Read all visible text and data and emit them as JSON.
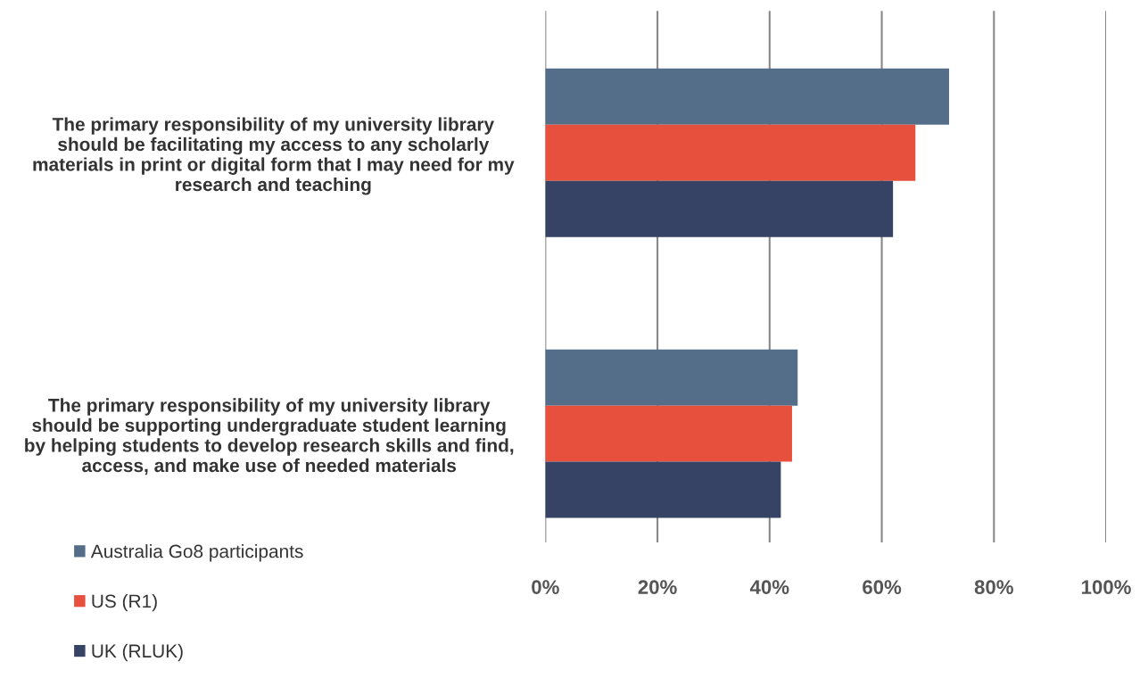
{
  "chart_data": {
    "type": "bar",
    "orientation": "horizontal",
    "categories": [
      "The primary responsibility of my university library\nshould be facilitating my access to any scholarly\nmaterials in print or digital form that I may need for my\nresearch and teaching",
      "The primary responsibility of my university library\nshould be supporting undergraduate student learning\nby helping students to develop research skills and find,\naccess, and make use of needed materials"
    ],
    "series": [
      {
        "name": "Australia Go8 participants",
        "color": "#546e8a",
        "values": [
          72,
          45
        ]
      },
      {
        "name": "US (R1)",
        "color": "#e8503e",
        "values": [
          66,
          44
        ]
      },
      {
        "name": "UK (RLUK)",
        "color": "#364364",
        "values": [
          62,
          42
        ]
      }
    ],
    "xlim": [
      0,
      100
    ],
    "xticks": [
      {
        "value": 0,
        "label": "0%"
      },
      {
        "value": 20,
        "label": "20%"
      },
      {
        "value": 40,
        "label": "40%"
      },
      {
        "value": 60,
        "label": "60%"
      },
      {
        "value": 80,
        "label": "80%"
      },
      {
        "value": 100,
        "label": "100%"
      }
    ],
    "grid": "x",
    "legend": "bottom left"
  }
}
